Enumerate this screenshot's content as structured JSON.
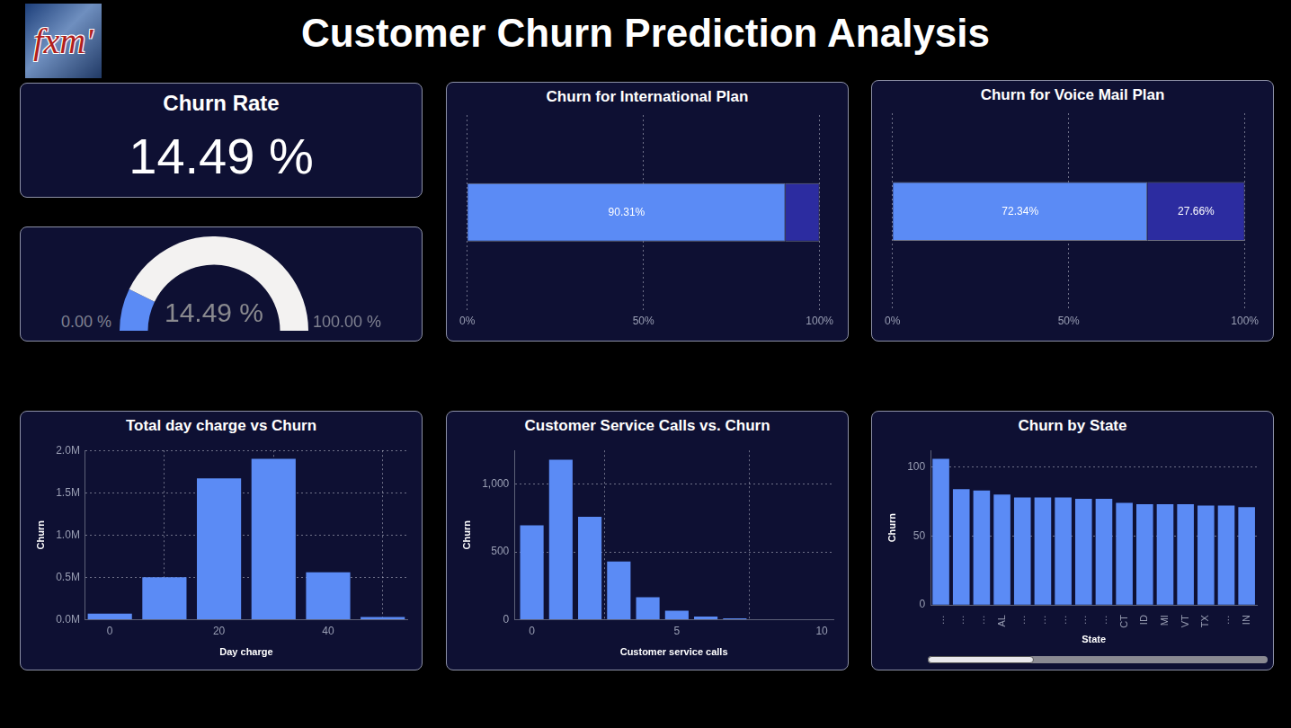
{
  "title": "Customer Churn Prediction Analysis",
  "logo": "fxm'",
  "chart_data": [
    {
      "type": "card",
      "title": "Churn Rate",
      "values": [
        14.49
      ],
      "value_labels": [
        "14.49 %"
      ]
    },
    {
      "type": "gauge",
      "values": [
        14.49
      ],
      "value_labels": [
        "14.49 %"
      ],
      "ylim": [
        0,
        100
      ],
      "yticks": [
        {
          "value": 0,
          "label": "0.00 %"
        },
        {
          "value": 100,
          "label": "100.00 %"
        }
      ],
      "colors": [
        "#5b8bf5",
        "#f3f2f1"
      ]
    },
    {
      "type": "bar",
      "title": "Churn for International Plan",
      "orientation": "horizontal",
      "stacked": true,
      "series": [
        {
          "color": "#5b8bf5",
          "values": [
            90.31
          ],
          "value_labels": [
            "90.31%"
          ]
        },
        {
          "color": "#2c2ca0",
          "values": [
            9.69
          ],
          "value_labels": [
            null
          ]
        }
      ],
      "xlim": [
        0,
        100
      ],
      "xticks": [
        {
          "value": 0,
          "label": "0%"
        },
        {
          "value": 50,
          "label": "50%"
        },
        {
          "value": 100,
          "label": "100%"
        }
      ],
      "grid": true,
      "data_labels": true,
      "tick_labels": "x"
    },
    {
      "type": "bar",
      "title": "Churn for Voice Mail Plan",
      "orientation": "horizontal",
      "stacked": true,
      "series": [
        {
          "color": "#5b8bf5",
          "values": [
            72.34
          ],
          "value_labels": [
            "72.34%"
          ]
        },
        {
          "color": "#2c2ca0",
          "values": [
            27.66
          ],
          "value_labels": [
            "27.66%"
          ]
        }
      ],
      "xlim": [
        0,
        100
      ],
      "xticks": [
        {
          "value": 0,
          "label": "0%"
        },
        {
          "value": 50,
          "label": "50%"
        },
        {
          "value": 100,
          "label": "100%"
        }
      ],
      "grid": true,
      "data_labels": true,
      "tick_labels": "x"
    },
    {
      "type": "bar",
      "title": "Total day charge vs Churn",
      "xlabel": "Day charge",
      "ylabel": "Churn",
      "x": [
        0,
        10,
        20,
        30,
        40,
        50
      ],
      "values": [
        70000,
        500000,
        1670000,
        1900000,
        560000,
        30000
      ],
      "color": "#5b8bf5",
      "xlim": [
        -4.5,
        54.5
      ],
      "xticks": [
        0,
        20,
        40
      ],
      "ylim": [
        0,
        2000000
      ],
      "yticks": [
        {
          "value": 0,
          "label": "0.0M"
        },
        {
          "value": 500000,
          "label": "0.5M"
        },
        {
          "value": 1000000,
          "label": "1.0M"
        },
        {
          "value": 1500000,
          "label": "1.5M"
        },
        {
          "value": 2000000,
          "label": "2.0M"
        }
      ],
      "grid": true
    },
    {
      "type": "bar",
      "title": "Customer Service Calls vs. Churn",
      "xlabel": "Customer service calls",
      "ylabel": "Churn",
      "x": [
        0,
        1,
        2,
        3,
        4,
        5,
        6,
        7,
        8,
        9
      ],
      "values": [
        697,
        1181,
        759,
        429,
        166,
        66,
        22,
        9,
        2,
        2
      ],
      "color": "#5b8bf5",
      "xlim": [
        -0.6,
        10.4
      ],
      "xticks": [
        0,
        5,
        10
      ],
      "ylim": [
        0,
        1250
      ],
      "yticks": [
        0,
        500,
        {
          "value": 1000,
          "label": "1,000"
        }
      ],
      "grid": true
    },
    {
      "type": "bar",
      "title": "Churn by State",
      "xlabel": "State",
      "ylabel": "Churn",
      "categories": [
        "…",
        "…",
        "…",
        "AL",
        "…",
        "…",
        "…",
        "…",
        "…",
        "CT",
        "ID",
        "MI",
        "VT",
        "TX",
        "…",
        "IN"
      ],
      "values": [
        106,
        84,
        83,
        80,
        78,
        78,
        78,
        77,
        77,
        74,
        73,
        73,
        73,
        72,
        72,
        71
      ],
      "color": "#5b8bf5",
      "ylim": [
        0,
        112
      ],
      "yticks": [
        0,
        50,
        100
      ],
      "grid": true
    }
  ]
}
